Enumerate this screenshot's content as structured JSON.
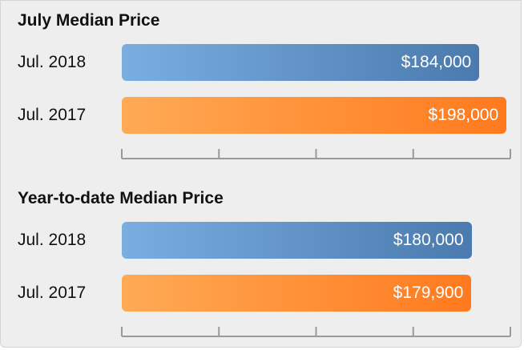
{
  "chart_data": [
    {
      "type": "bar",
      "orientation": "horizontal",
      "title": "July Median Price",
      "categories": [
        "Jul. 2018",
        "Jul. 2017"
      ],
      "values": [
        184000,
        198000
      ],
      "value_labels": [
        "$184,000",
        "$198,000"
      ],
      "xlim": [
        0,
        200000
      ],
      "grid": false,
      "colors": [
        "#5b8fc4",
        "#ff8a2e"
      ]
    },
    {
      "type": "bar",
      "orientation": "horizontal",
      "title": "Year-to-date Median Price",
      "categories": [
        "Jul. 2018",
        "Jul. 2017"
      ],
      "values": [
        180000,
        179900
      ],
      "value_labels": [
        "$180,000",
        "$179,900"
      ],
      "xlim": [
        0,
        200000
      ],
      "grid": false,
      "colors": [
        "#5b8fc4",
        "#ff8a2e"
      ]
    }
  ],
  "colors": {
    "bar_2018_start": "#7aaee0",
    "bar_2018_end": "#4a7aae",
    "bar_2017_start": "#ffaa55",
    "bar_2017_end": "#ff7a1e",
    "axis": "#9a9a9a"
  }
}
